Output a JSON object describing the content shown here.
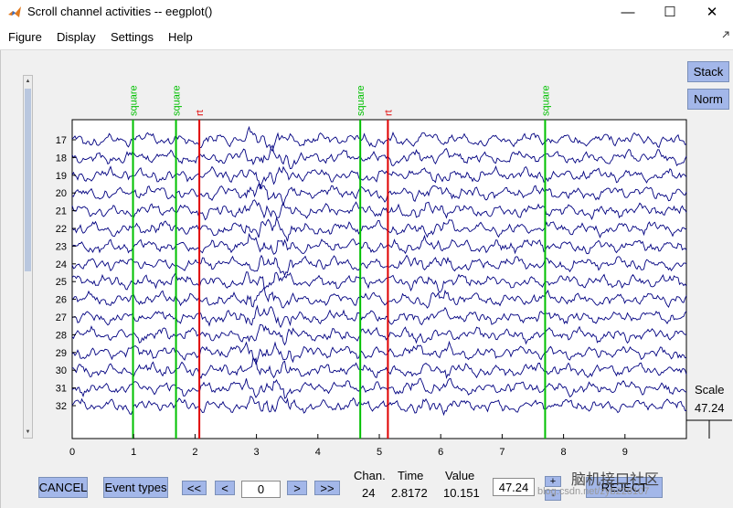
{
  "window": {
    "title": "Scroll channel activities -- eegplot()",
    "minimize": "—",
    "maximize": "☐",
    "close": "✕"
  },
  "menu": [
    "Figure",
    "Display",
    "Settings",
    "Help"
  ],
  "buttons": {
    "stack": "Stack",
    "norm": "Norm"
  },
  "scale": {
    "label": "Scale",
    "value": "47.24"
  },
  "chart_data": {
    "type": "line",
    "x_ticks": [
      0,
      1,
      2,
      3,
      4,
      5,
      6,
      7,
      8,
      9
    ],
    "xlim": [
      0,
      10
    ],
    "channels": [
      17,
      18,
      19,
      20,
      21,
      22,
      23,
      24,
      25,
      26,
      27,
      28,
      29,
      30,
      31,
      32
    ],
    "events": [
      {
        "type": "square",
        "time": 0.99,
        "color": "#00c000"
      },
      {
        "type": "square",
        "time": 1.69,
        "color": "#00c000"
      },
      {
        "type": "rt",
        "time": 2.07,
        "color": "#e00000"
      },
      {
        "type": "square",
        "time": 4.69,
        "color": "#00c000"
      },
      {
        "type": "rt",
        "time": 5.14,
        "color": "#e00000"
      },
      {
        "type": "square",
        "time": 7.7,
        "color": "#00c000"
      }
    ],
    "trace_color": "#000080"
  },
  "controls": {
    "cancel": "CANCEL",
    "event_types": "Event types",
    "prev_page": "<<",
    "prev": "<",
    "position_value": "0",
    "next": ">",
    "next_page": ">>",
    "chan_label": "Chan.",
    "chan_value": "24",
    "time_label": "Time",
    "time_value": "2.8172",
    "value_label": "Value",
    "value_value": "10.151",
    "scale_value": "47.24",
    "scale_plus": "+",
    "scale_minus": "-",
    "reject": "REJECT"
  },
  "watermark": {
    "text": "脑机接口社区",
    "url": "blog.csdn.net/zyb228107"
  }
}
